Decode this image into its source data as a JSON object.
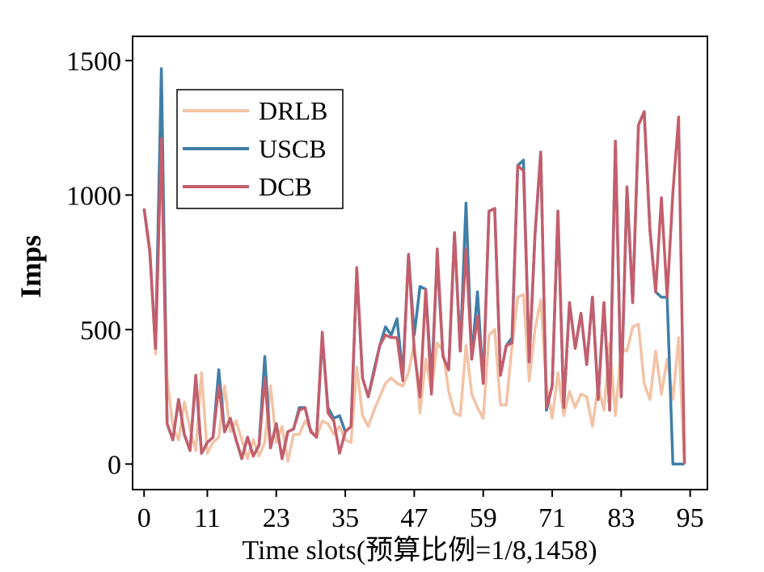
{
  "chart_data": {
    "type": "line",
    "xlabel": "Time slots(预算比例=1/8,1458)",
    "ylabel": "Imps",
    "xlim": [
      -2,
      98
    ],
    "ylim": [
      -95,
      1590
    ],
    "xticks": [
      0,
      11,
      23,
      35,
      47,
      59,
      71,
      83,
      95
    ],
    "yticks": [
      0,
      500,
      1000,
      1500
    ],
    "grid": false,
    "legend": "top-left",
    "series": [
      {
        "name": "DRLB",
        "color": "#f2c3a6",
        "x": [
          0,
          1,
          2,
          3,
          4,
          5,
          6,
          7,
          8,
          9,
          10,
          11,
          12,
          13,
          14,
          15,
          16,
          17,
          18,
          19,
          20,
          21,
          22,
          23,
          24,
          25,
          26,
          27,
          28,
          29,
          30,
          31,
          32,
          33,
          34,
          35,
          36,
          37,
          38,
          39,
          40,
          41,
          42,
          43,
          44,
          45,
          46,
          47,
          48,
          49,
          50,
          51,
          52,
          53,
          54,
          55,
          56,
          57,
          58,
          59,
          60,
          61,
          62,
          63,
          64,
          65,
          66,
          67,
          68,
          69,
          70,
          71,
          72,
          73,
          74,
          75,
          76,
          77,
          78,
          79,
          80,
          81,
          82,
          83,
          84,
          85,
          86,
          87,
          88,
          89,
          90,
          91,
          92,
          93,
          94
        ],
        "y": [
          950,
          800,
          410,
          1230,
          320,
          140,
          90,
          230,
          130,
          50,
          340,
          40,
          80,
          100,
          290,
          120,
          160,
          90,
          20,
          90,
          30,
          80,
          290,
          80,
          140,
          10,
          110,
          110,
          160,
          130,
          100,
          160,
          150,
          110,
          140,
          90,
          80,
          360,
          180,
          140,
          200,
          250,
          300,
          320,
          300,
          290,
          340,
          450,
          190,
          390,
          270,
          450,
          420,
          270,
          190,
          180,
          440,
          260,
          210,
          170,
          480,
          500,
          220,
          220,
          440,
          620,
          630,
          310,
          500,
          610,
          290,
          170,
          340,
          180,
          270,
          210,
          260,
          250,
          140,
          290,
          200,
          450,
          180,
          430,
          420,
          510,
          520,
          300,
          240,
          420,
          260,
          390,
          240,
          470,
          0
        ]
      },
      {
        "name": "USCB",
        "color": "#3f7fa8",
        "x": [
          0,
          1,
          2,
          3,
          4,
          5,
          6,
          7,
          8,
          9,
          10,
          11,
          12,
          13,
          14,
          15,
          16,
          17,
          18,
          19,
          20,
          21,
          22,
          23,
          24,
          25,
          26,
          27,
          28,
          29,
          30,
          31,
          32,
          33,
          34,
          35,
          36,
          37,
          38,
          39,
          40,
          41,
          42,
          43,
          44,
          45,
          46,
          47,
          48,
          49,
          50,
          51,
          52,
          53,
          54,
          55,
          56,
          57,
          58,
          59,
          60,
          61,
          62,
          63,
          64,
          65,
          66,
          67,
          68,
          69,
          70,
          71,
          72,
          73,
          74,
          75,
          76,
          77,
          78,
          79,
          80,
          81,
          82,
          83,
          84,
          85,
          86,
          87,
          88,
          89,
          90,
          91,
          92,
          93,
          94
        ],
        "y": [
          950,
          790,
          430,
          1470,
          150,
          90,
          240,
          110,
          50,
          320,
          40,
          80,
          100,
          350,
          120,
          170,
          90,
          20,
          100,
          30,
          70,
          400,
          60,
          150,
          20,
          120,
          130,
          210,
          210,
          120,
          100,
          470,
          210,
          170,
          180,
          120,
          140,
          720,
          320,
          250,
          350,
          440,
          510,
          480,
          540,
          330,
          780,
          480,
          660,
          650,
          310,
          770,
          400,
          350,
          860,
          420,
          970,
          390,
          640,
          300,
          940,
          950,
          330,
          440,
          470,
          1110,
          1130,
          380,
          850,
          1160,
          200,
          290,
          940,
          210,
          600,
          430,
          560,
          370,
          620,
          240,
          600,
          200,
          1200,
          250,
          1030,
          600,
          1260,
          1310,
          870,
          640,
          620,
          620,
          0,
          0,
          0
        ]
      },
      {
        "name": "DCB",
        "color": "#c45e6c",
        "x": [
          0,
          1,
          2,
          3,
          4,
          5,
          6,
          7,
          8,
          9,
          10,
          11,
          12,
          13,
          14,
          15,
          16,
          17,
          18,
          19,
          20,
          21,
          22,
          23,
          24,
          25,
          26,
          27,
          28,
          29,
          30,
          31,
          32,
          33,
          34,
          35,
          36,
          37,
          38,
          39,
          40,
          41,
          42,
          43,
          44,
          45,
          46,
          47,
          48,
          49,
          50,
          51,
          52,
          53,
          54,
          55,
          56,
          57,
          58,
          59,
          60,
          61,
          62,
          63,
          64,
          65,
          66,
          67,
          68,
          69,
          70,
          71,
          72,
          73,
          74,
          75,
          76,
          77,
          78,
          79,
          80,
          81,
          82,
          83,
          84,
          85,
          86,
          87,
          88,
          89,
          90,
          91,
          92,
          93,
          94
        ],
        "y": [
          950,
          790,
          430,
          1210,
          150,
          90,
          240,
          110,
          50,
          330,
          40,
          80,
          100,
          290,
          120,
          170,
          90,
          20,
          100,
          30,
          70,
          320,
          60,
          150,
          20,
          120,
          130,
          200,
          210,
          120,
          100,
          490,
          190,
          160,
          40,
          120,
          140,
          730,
          320,
          250,
          340,
          440,
          480,
          470,
          470,
          310,
          780,
          420,
          250,
          650,
          260,
          800,
          400,
          350,
          860,
          420,
          800,
          390,
          550,
          300,
          940,
          950,
          330,
          440,
          450,
          1110,
          1090,
          380,
          850,
          1160,
          210,
          290,
          940,
          210,
          600,
          430,
          560,
          370,
          620,
          240,
          600,
          200,
          1200,
          250,
          1030,
          600,
          1260,
          1310,
          870,
          640,
          990,
          620,
          1010,
          1290,
          0
        ]
      }
    ]
  }
}
